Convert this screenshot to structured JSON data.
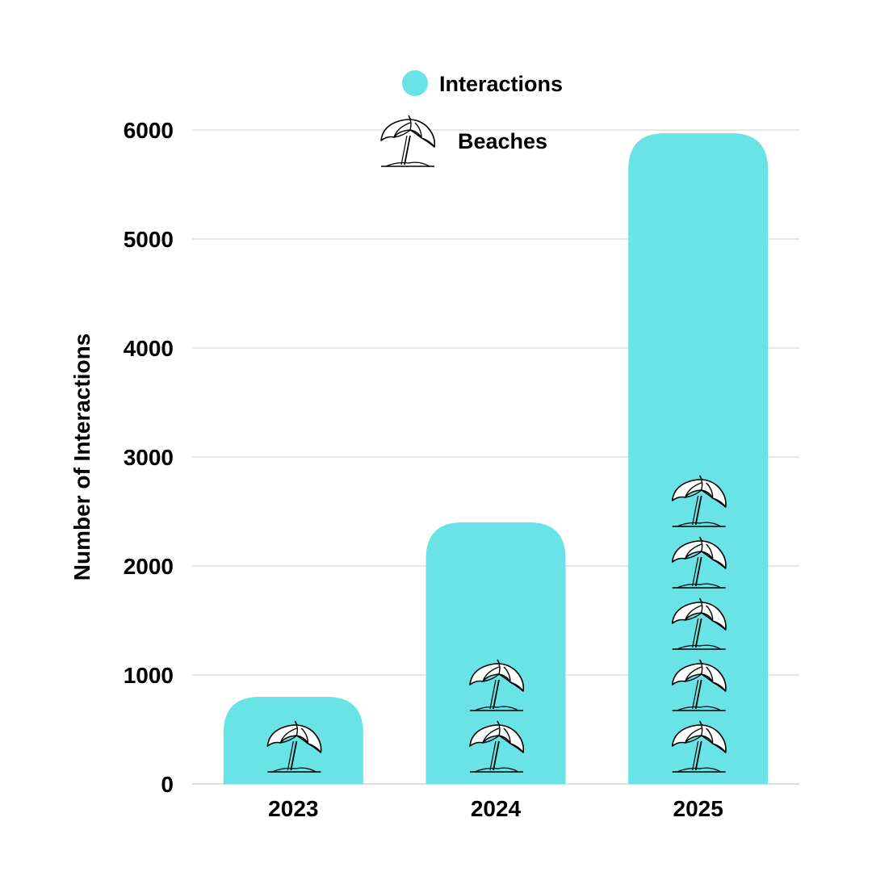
{
  "chart_data": {
    "type": "bar",
    "categories": [
      "2023",
      "2024",
      "2025"
    ],
    "series": [
      {
        "name": "Interactions",
        "values": [
          800,
          2400,
          5970
        ],
        "color": "#69e3e6"
      }
    ],
    "pictograph": {
      "name": "Beaches",
      "icon": "beach-umbrella-icon",
      "counts": [
        1,
        2,
        5
      ]
    },
    "ylabel": "Number of Interactions",
    "xlabel": "",
    "ylim": [
      0,
      6000
    ],
    "yticks": [
      0,
      1000,
      2000,
      3000,
      4000,
      5000,
      6000
    ],
    "grid": true,
    "legend_position": "top-center",
    "legend": [
      {
        "label": "Interactions",
        "marker": "circle",
        "color": "#69e3e6"
      },
      {
        "label": "Beaches",
        "marker": "beach-umbrella-icon"
      }
    ]
  }
}
